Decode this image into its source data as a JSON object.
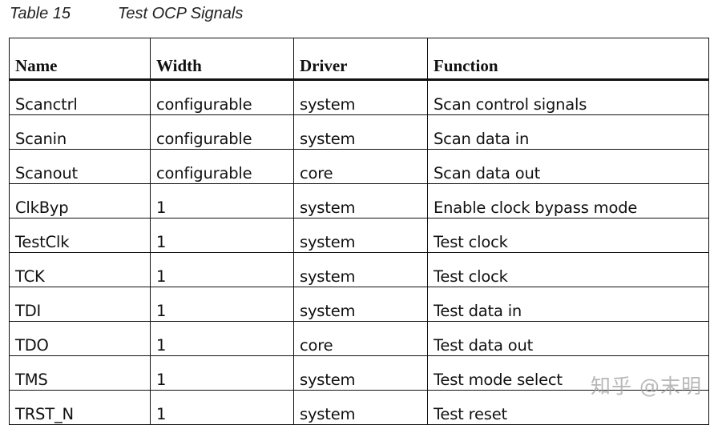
{
  "caption": {
    "number": "Table 15",
    "title": "Test OCP Signals"
  },
  "table": {
    "headers": [
      "Name",
      "Width",
      "Driver",
      "Function"
    ],
    "rows": [
      [
        "Scanctrl",
        "configurable",
        "system",
        "Scan control signals"
      ],
      [
        "Scanin",
        "configurable",
        "system",
        "Scan data in"
      ],
      [
        "Scanout",
        "configurable",
        "core",
        "Scan data out"
      ],
      [
        "ClkByp",
        "1",
        "system",
        "Enable clock bypass mode"
      ],
      [
        "TestClk",
        "1",
        "system",
        "Test clock"
      ],
      [
        "TCK",
        "1",
        "system",
        "Test clock"
      ],
      [
        "TDI",
        "1",
        "system",
        "Test data in"
      ],
      [
        "TDO",
        "1",
        "core",
        "Test data out"
      ],
      [
        "TMS",
        "1",
        "system",
        "Test mode select"
      ],
      [
        "TRST_N",
        "1",
        "system",
        "Test reset"
      ]
    ]
  },
  "watermark": "知乎 @末明"
}
